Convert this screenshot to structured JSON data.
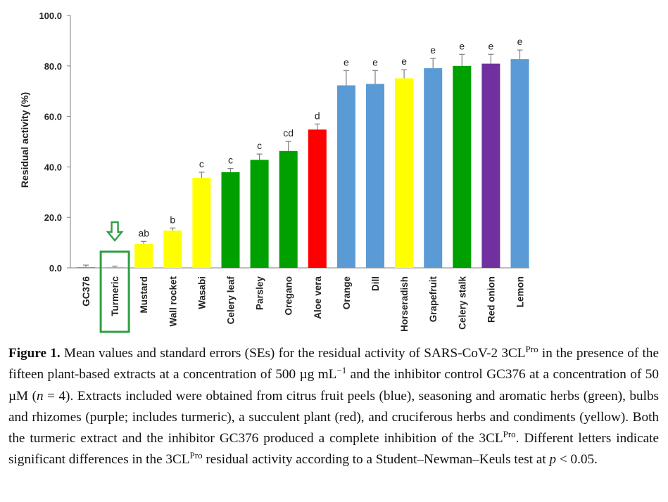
{
  "chart_data": {
    "type": "bar",
    "ylabel": "Residual activity (%)",
    "ylim": [
      0,
      100
    ],
    "yticks": [
      "0.0",
      "20.0",
      "40.0",
      "60.0",
      "80.0",
      "100.0"
    ],
    "categories": [
      "GC376",
      "Turmeric",
      "Mustard",
      "Wall rocket",
      "Wasabi",
      "Celery leaf",
      "Parsley",
      "Oregano",
      "Aloe vera",
      "Orange",
      "Dill",
      "Horseradish",
      "Grapefruit",
      "Celery stalk",
      "Red onion",
      "Lemon"
    ],
    "values": [
      0.3,
      0.2,
      9.5,
      14.8,
      35.7,
      37.9,
      42.8,
      46.3,
      54.8,
      72.3,
      72.9,
      75.1,
      79.1,
      80.0,
      80.9,
      82.7
    ],
    "errors": [
      0.8,
      0.5,
      1.0,
      1.0,
      2.2,
      1.5,
      2.3,
      3.8,
      2.2,
      5.9,
      5.3,
      3.4,
      3.9,
      4.6,
      3.7,
      3.6
    ],
    "letters": [
      "",
      "",
      "ab",
      "b",
      "c",
      "c",
      "c",
      "cd",
      "d",
      "e",
      "e",
      "e",
      "e",
      "e",
      "e",
      "e"
    ],
    "bar_colors": [
      "#5b9bd5",
      "#5b9bd5",
      "#ffff00",
      "#ffff00",
      "#ffff00",
      "#00a000",
      "#00a000",
      "#00a000",
      "#ff0000",
      "#5b9bd5",
      "#5b9bd5",
      "#ffff00",
      "#5b9bd5",
      "#00a000",
      "#7030a0",
      "#5b9bd5"
    ],
    "highlight_category": "Turmeric",
    "highlight_color": "#2ea043",
    "grid": false
  },
  "caption": {
    "figure_label": "Figure 1.",
    "t1": " Mean values and standard errors (SEs) for the residual activity of SARS-CoV-2 3CL",
    "sup1": "Pro",
    "t2": " in the presence of the fifteen plant-based extracts at a concentration of 500 µg mL",
    "sup2": "−1",
    "t3": " and the inhibitor control GC376 at a concentration of 50 µM (",
    "n_var": "n",
    "t4": " = 4). Extracts included were obtained from citrus fruit peels (blue), seasoning and aromatic herbs (green), bulbs and rhizomes (purple; includes turmeric), a succulent plant (red), and cruciferous herbs and condiments (yellow). Both the turmeric extract and the inhibitor GC376 produced a complete inhibition of the 3CL",
    "sup3": "Pro",
    "t5": ". Different letters indicate significant differences in the 3CL",
    "sup4": "Pro",
    "t6": " residual activity according to a Student–Newman–Keuls test at ",
    "p_var": "p",
    "t7": " < 0.05."
  }
}
